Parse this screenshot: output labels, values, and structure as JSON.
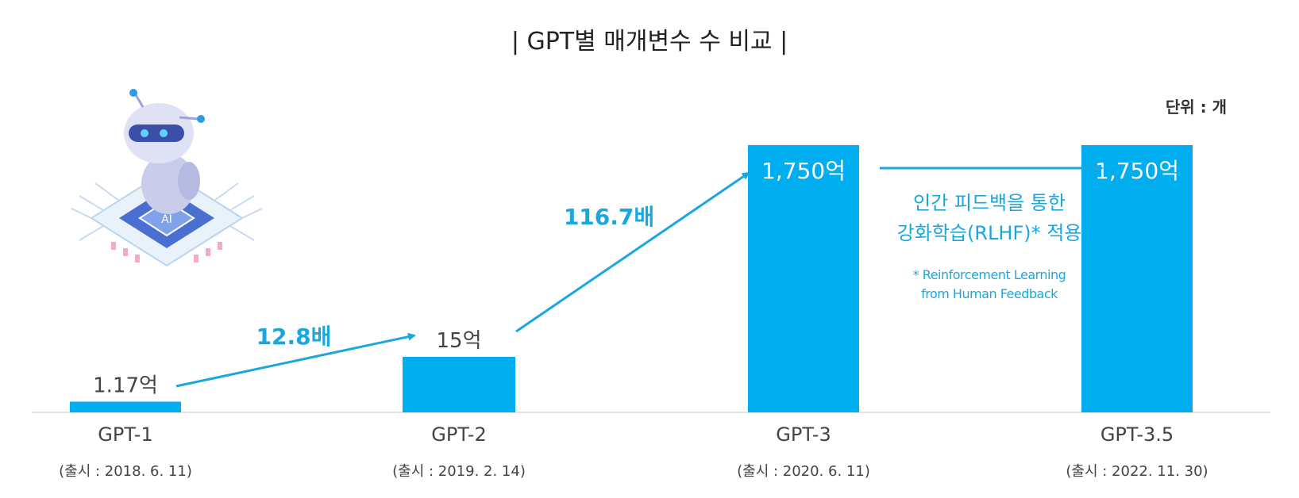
{
  "chart_data": {
    "type": "bar",
    "title": "| GPT별 매개변수 수 비교 |",
    "unit_label": "단위 : 개",
    "categories": [
      "GPT-1",
      "GPT-2",
      "GPT-3",
      "GPT-3.5"
    ],
    "release_labels": [
      "(출시 : 2018. 6. 11)",
      "(출시 : 2019. 2. 14)",
      "(출시 : 2020. 6. 11)",
      "(출시 : 2022. 11. 30)"
    ],
    "values": [
      1.17,
      15,
      1750,
      1750
    ],
    "value_labels": [
      "1.17억",
      "15억",
      "1,750억",
      "1,750억"
    ],
    "multipliers": [
      "12.8배",
      "116.7배"
    ],
    "annotation_lines": [
      "인간 피드백을 통한",
      "강화학습(RLHF)* 적용"
    ],
    "footnote_lines": [
      "* Reinforcement Learning",
      "from Human Feedback"
    ],
    "colors": {
      "bar": "#00adef",
      "accent": "#1aa7e0"
    }
  }
}
